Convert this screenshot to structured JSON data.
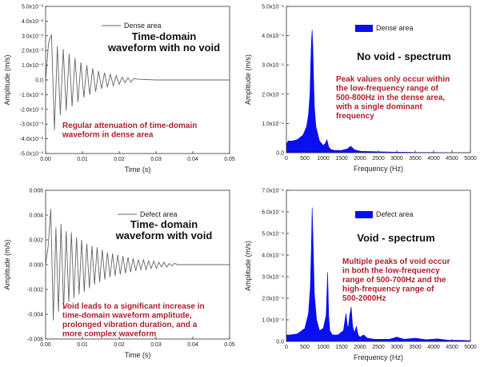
{
  "chart_data": [
    {
      "type": "line",
      "title": "Time-domain waveform with no void",
      "title_lines": [
        "Time-domain",
        "waveform with no void"
      ],
      "legend": "Dense area",
      "annotation_lines": [
        "Regular attenuation of time-domain",
        "waveform in dense area"
      ],
      "xlabel": "Time (s)",
      "ylabel": "Amplitude (m/s)",
      "xlim": [
        0,
        0.05
      ],
      "ylim": [
        -0.005,
        0.005
      ],
      "xticks": [
        "0.00",
        "0.01",
        "0.02",
        "0.03",
        "0.04",
        "0.05"
      ],
      "yticks": [
        "-5.0x10⁻³",
        "-4.0x10⁻³",
        "-3.0x10⁻³",
        "-2.0x10⁻³",
        "-1.0x10⁻³",
        "0.0",
        "1.0x10⁻³",
        "2.0x10⁻³",
        "3.0x10⁻³",
        "4.0x10⁻³",
        "5.0x10⁻³"
      ],
      "ytick_values": [
        -0.005,
        -0.004,
        -0.003,
        -0.002,
        -0.001,
        0,
        0.001,
        0.002,
        0.003,
        0.004,
        0.005
      ],
      "series": [
        {
          "name": "Dense area",
          "x": [
            0,
            0.0008,
            0.0016,
            0.0024,
            0.0032,
            0.004,
            0.0048,
            0.0056,
            0.0064,
            0.0072,
            0.008,
            0.0088,
            0.0096,
            0.0104,
            0.0112,
            0.012,
            0.0128,
            0.0136,
            0.0144,
            0.0152,
            0.016,
            0.0168,
            0.0176,
            0.0184,
            0.0192,
            0.02,
            0.0208,
            0.0216,
            0.0224,
            0.0232,
            0.024,
            0.025,
            0.03,
            0.035,
            0.04,
            0.045,
            0.05
          ],
          "values": [
            0,
            0.0025,
            0.0031,
            -0.0034,
            0.0023,
            -0.0024,
            0.0021,
            -0.0021,
            0.0018,
            -0.0018,
            0.0015,
            -0.0015,
            0.0012,
            -0.0012,
            0.001,
            -0.001,
            0.0008,
            -0.0008,
            0.0006,
            -0.0006,
            0.0005,
            -0.0005,
            0.0004,
            -0.0004,
            0.0003,
            -0.0003,
            0.0002,
            -0.0002,
            0.00015,
            -0.00015,
            0.0001,
            5e-05,
            0,
            0,
            0,
            0,
            0
          ]
        }
      ]
    },
    {
      "type": "area",
      "title": "No void - spectrum",
      "title_lines": [
        "No void - spectrum"
      ],
      "legend": "Dense area",
      "annotation_lines": [
        "Peak values only occur within",
        "the low-frequency range of",
        "500-800Hz in the dense area,",
        "with a single dominant",
        "frequency"
      ],
      "xlabel": "Frequency (Hz)",
      "ylabel": "Amplitude (m/s)",
      "xlim": [
        0,
        5000
      ],
      "ylim": [
        0,
        0.0005
      ],
      "xticks": [
        "0",
        "500",
        "1000",
        "1500",
        "2000",
        "2500",
        "3000",
        "3500",
        "4000",
        "4500",
        "5000"
      ],
      "yticks": [
        "0.0",
        "1.0x10⁻⁴",
        "2.0x10⁻⁴",
        "3.0x10⁻⁴",
        "4.0x10⁻⁴",
        "5.0x10⁻⁴"
      ],
      "ytick_values": [
        0,
        0.0001,
        0.0002,
        0.0003,
        0.0004,
        0.0005
      ],
      "series": [
        {
          "name": "Dense area",
          "x": [
            0,
            50,
            150,
            300,
            450,
            550,
            600,
            640,
            660,
            680,
            700,
            720,
            740,
            760,
            800,
            900,
            1000,
            1050,
            1100,
            1150,
            1200,
            1300,
            1500,
            1650,
            1750,
            1850,
            2000,
            2300,
            2600,
            3000,
            3500,
            4000,
            4500,
            5000
          ],
          "values": [
            3e-05,
            4e-05,
            4e-05,
            4.5e-05,
            6e-05,
            9e-05,
            0.00013,
            0.0002,
            0.0003,
            0.00038,
            0.00042,
            0.00036,
            0.00025,
            0.00016,
            9e-05,
            4e-05,
            2.5e-05,
            3e-05,
            4.5e-05,
            2e-05,
            1.2e-05,
            8e-06,
            8e-06,
            1.3e-05,
            2.2e-05,
            1e-05,
            5e-06,
            4e-06,
            3e-06,
            2e-06,
            1e-06,
            1e-06,
            0,
            0
          ]
        }
      ]
    },
    {
      "type": "line",
      "title": "Time- domain waveform with void",
      "title_lines": [
        "Time- domain",
        "waveform with void"
      ],
      "legend": "Defect area",
      "annotation_lines": [
        "Void leads to a significant increase in",
        "time-domain waveform amplitude,",
        "prolonged vibration duration, and a",
        "more complex waveform"
      ],
      "xlabel": "Time (s)",
      "ylabel": "Amplitude (m/s)",
      "xlim": [
        0,
        0.05
      ],
      "ylim": [
        -0.006,
        0.006
      ],
      "xticks": [
        "0.00",
        "0.01",
        "0.02",
        "0.03",
        "0.04",
        "0.05"
      ],
      "yticks": [
        "-0.006",
        "-0.004",
        "-0.002",
        "0.000",
        "0.002",
        "0.004",
        "0.006"
      ],
      "ytick_values": [
        -0.006,
        -0.004,
        -0.002,
        0,
        0.002,
        0.004,
        0.006
      ],
      "series": [
        {
          "name": "Defect area",
          "x": [
            0,
            0.0007,
            0.0014,
            0.0021,
            0.0028,
            0.0035,
            0.0042,
            0.0049,
            0.0056,
            0.0063,
            0.007,
            0.0077,
            0.0084,
            0.0091,
            0.0098,
            0.0105,
            0.0112,
            0.0119,
            0.0126,
            0.0133,
            0.014,
            0.0147,
            0.0154,
            0.0161,
            0.0168,
            0.0175,
            0.0182,
            0.0189,
            0.0196,
            0.0203,
            0.021,
            0.0217,
            0.0224,
            0.0231,
            0.0238,
            0.0245,
            0.0252,
            0.0259,
            0.0266,
            0.0273,
            0.028,
            0.0287,
            0.0294,
            0.0301,
            0.0308,
            0.0315,
            0.0322,
            0.0329,
            0.0336,
            0.0343,
            0.035,
            0.036,
            0.04,
            0.045,
            0.05
          ],
          "values": [
            0,
            0.0015,
            0.0045,
            -0.0045,
            0.003,
            -0.0038,
            0.0033,
            -0.0036,
            0.0027,
            -0.003,
            0.0026,
            -0.0027,
            0.0022,
            -0.0024,
            0.002,
            -0.0022,
            0.0017,
            -0.0019,
            0.0015,
            -0.0016,
            0.0014,
            -0.0014,
            0.0012,
            -0.0012,
            0.001,
            -0.001,
            0.0009,
            -0.0009,
            0.0008,
            -0.0008,
            0.0007,
            -0.0007,
            0.0006,
            -0.0006,
            0.0005,
            -0.0005,
            0.0004,
            -0.0004,
            0.0004,
            -0.0004,
            0.0003,
            -0.0003,
            0.0003,
            -0.0003,
            0.0002,
            -0.0002,
            0.0002,
            -0.0002,
            0.0001,
            -0.0001,
            0.0001,
            0,
            0,
            0,
            0
          ]
        }
      ]
    },
    {
      "type": "area",
      "title": "Void - spectrum",
      "title_lines": [
        "Void - spectrum"
      ],
      "legend": "Defect area",
      "annotation_lines": [
        "Multiple peaks of void occur",
        "in both the low-frequency",
        "range of 500-700Hz and the",
        "high-frequency range of",
        "500-2000Hz"
      ],
      "xlabel": "Frequency (Hz)",
      "ylabel": "Amplitude (m/s)",
      "xlim": [
        0,
        5000
      ],
      "ylim": [
        0,
        0.0007
      ],
      "xticks": [
        "0",
        "500",
        "1000",
        "1500",
        "2000",
        "2500",
        "3000",
        "3500",
        "4000",
        "4500",
        "5000"
      ],
      "yticks": [
        "0.0",
        "1.0x10⁻⁴",
        "2.0x10⁻⁴",
        "3.0x10⁻⁴",
        "4.0x10⁻⁴",
        "5.0x10⁻⁴",
        "6.0x10⁻⁴",
        "7.0x10⁻⁴"
      ],
      "ytick_values": [
        0,
        0.0001,
        0.0002,
        0.0003,
        0.0004,
        0.0005,
        0.0006,
        0.0007
      ],
      "series": [
        {
          "name": "Defect area",
          "x": [
            0,
            100,
            300,
            500,
            600,
            650,
            680,
            700,
            720,
            760,
            820,
            900,
            1000,
            1080,
            1120,
            1150,
            1180,
            1250,
            1400,
            1550,
            1620,
            1650,
            1680,
            1720,
            1760,
            1800,
            1850,
            1900,
            1950,
            2000,
            2100,
            2200,
            2400,
            2600,
            2800,
            3000,
            3200,
            3500,
            3800,
            4100,
            4400,
            4800,
            5000
          ],
          "values": [
            3e-05,
            3e-05,
            3.5e-05,
            6e-05,
            0.00013,
            0.00025,
            0.00045,
            0.00062,
            0.0005,
            0.00022,
            0.0001,
            5e-05,
            6e-05,
            0.00012,
            0.00032,
            0.00012,
            5e-05,
            3e-05,
            3e-05,
            5e-05,
            0.00013,
            8e-05,
            6e-05,
            0.00012,
            0.00016,
            7e-05,
            4e-05,
            7e-05,
            3e-05,
            2e-05,
            3e-05,
            1.5e-05,
            1e-05,
            1e-05,
            1e-05,
            2e-05,
            1e-05,
            1.5e-05,
            8e-06,
            1.2e-05,
            6e-06,
            5e-06,
            3e-06
          ]
        }
      ]
    }
  ]
}
